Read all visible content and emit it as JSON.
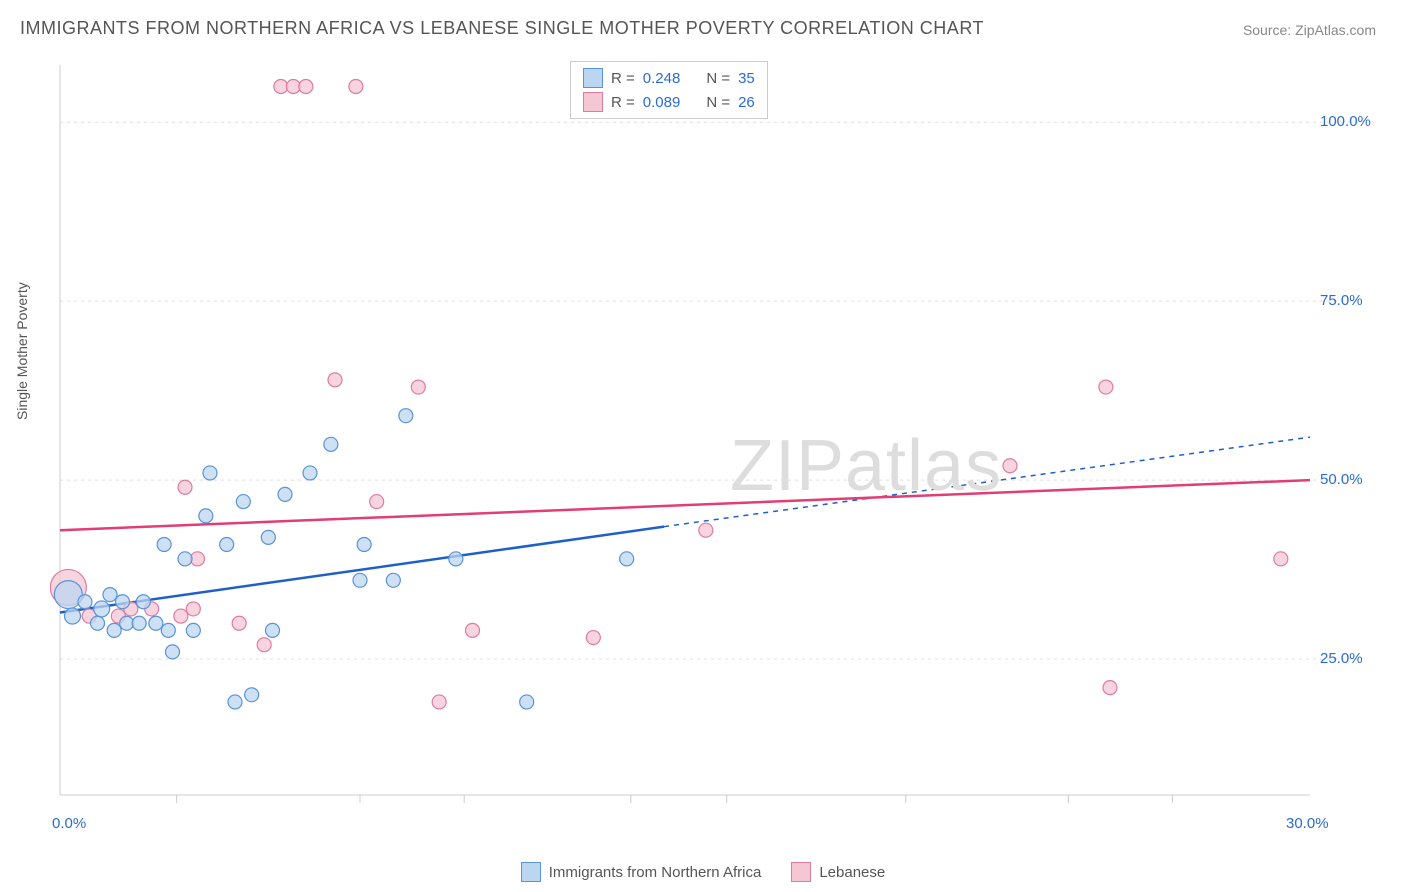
{
  "title": "IMMIGRANTS FROM NORTHERN AFRICA VS LEBANESE SINGLE MOTHER POVERTY CORRELATION CHART",
  "source_prefix": "Source: ",
  "source": "ZipAtlas.com",
  "y_axis_label": "Single Mother Poverty",
  "watermark": "ZIPatlas",
  "chart": {
    "type": "scatter",
    "xlim": [
      0,
      30
    ],
    "ylim": [
      6,
      108
    ],
    "x_ticks": [
      0,
      30
    ],
    "x_tick_labels": [
      "0.0%",
      "30.0%"
    ],
    "x_minor_ticks": [
      2.8,
      7.2,
      9.7,
      13.7,
      16.0,
      20.3,
      24.2,
      26.7
    ],
    "y_ticks": [
      25,
      50,
      75,
      100
    ],
    "y_tick_labels": [
      "25.0%",
      "50.0%",
      "75.0%",
      "100.0%"
    ],
    "grid_color": "#dddddd",
    "axis_color": "#cccccc",
    "background_color": "#ffffff",
    "tick_label_color": "#2b6cd4",
    "axis_label_color": "#555555",
    "series": [
      {
        "name": "Immigrants from Northern Africa",
        "marker_fill": "#bcd5f0",
        "marker_stroke": "#5a94d6",
        "marker_opacity": 0.75,
        "line_color": "#1f5fc9",
        "R": "0.248",
        "N": "35",
        "regression": {
          "x1": 0,
          "y1": 31.5,
          "x2": 14.5,
          "y2": 43.5,
          "x2_ext": 30,
          "y2_ext": 56
        },
        "points": [
          {
            "x": 0.2,
            "y": 34,
            "r": 14
          },
          {
            "x": 0.3,
            "y": 31,
            "r": 8
          },
          {
            "x": 0.6,
            "y": 33,
            "r": 7
          },
          {
            "x": 0.9,
            "y": 30,
            "r": 7
          },
          {
            "x": 1.0,
            "y": 32,
            "r": 8
          },
          {
            "x": 1.2,
            "y": 34,
            "r": 7
          },
          {
            "x": 1.3,
            "y": 29,
            "r": 7
          },
          {
            "x": 1.5,
            "y": 33,
            "r": 7
          },
          {
            "x": 1.6,
            "y": 30,
            "r": 7
          },
          {
            "x": 1.9,
            "y": 30,
            "r": 7
          },
          {
            "x": 2.0,
            "y": 33,
            "r": 7
          },
          {
            "x": 2.3,
            "y": 30,
            "r": 7
          },
          {
            "x": 2.5,
            "y": 41,
            "r": 7
          },
          {
            "x": 2.6,
            "y": 29,
            "r": 7
          },
          {
            "x": 2.7,
            "y": 26,
            "r": 7
          },
          {
            "x": 3.0,
            "y": 39,
            "r": 7
          },
          {
            "x": 3.2,
            "y": 29,
            "r": 7
          },
          {
            "x": 3.5,
            "y": 45,
            "r": 7
          },
          {
            "x": 3.6,
            "y": 51,
            "r": 7
          },
          {
            "x": 4.0,
            "y": 41,
            "r": 7
          },
          {
            "x": 4.2,
            "y": 19,
            "r": 7
          },
          {
            "x": 4.4,
            "y": 47,
            "r": 7
          },
          {
            "x": 4.6,
            "y": 20,
            "r": 7
          },
          {
            "x": 5.0,
            "y": 42,
            "r": 7
          },
          {
            "x": 5.1,
            "y": 29,
            "r": 7
          },
          {
            "x": 5.4,
            "y": 48,
            "r": 7
          },
          {
            "x": 6.0,
            "y": 51,
            "r": 7
          },
          {
            "x": 6.5,
            "y": 55,
            "r": 7
          },
          {
            "x": 7.2,
            "y": 36,
            "r": 7
          },
          {
            "x": 7.3,
            "y": 41,
            "r": 7
          },
          {
            "x": 8.0,
            "y": 36,
            "r": 7
          },
          {
            "x": 8.3,
            "y": 59,
            "r": 7
          },
          {
            "x": 9.5,
            "y": 39,
            "r": 7
          },
          {
            "x": 11.2,
            "y": 19,
            "r": 7
          },
          {
            "x": 13.6,
            "y": 39,
            "r": 7
          }
        ]
      },
      {
        "name": "Lebanese",
        "marker_fill": "#f5c6d4",
        "marker_stroke": "#e07ba0",
        "marker_opacity": 0.75,
        "line_color": "#e23d74",
        "R": "0.089",
        "N": "26",
        "regression": {
          "x1": 0,
          "y1": 43,
          "x2": 30,
          "y2": 50,
          "x2_ext": 30,
          "y2_ext": 50
        },
        "points": [
          {
            "x": 0.2,
            "y": 35,
            "r": 18
          },
          {
            "x": 0.7,
            "y": 31,
            "r": 7
          },
          {
            "x": 1.4,
            "y": 31,
            "r": 7
          },
          {
            "x": 1.7,
            "y": 32,
            "r": 7
          },
          {
            "x": 2.2,
            "y": 32,
            "r": 7
          },
          {
            "x": 2.9,
            "y": 31,
            "r": 7
          },
          {
            "x": 3.0,
            "y": 49,
            "r": 7
          },
          {
            "x": 3.2,
            "y": 32,
            "r": 7
          },
          {
            "x": 3.3,
            "y": 39,
            "r": 7
          },
          {
            "x": 4.3,
            "y": 30,
            "r": 7
          },
          {
            "x": 4.9,
            "y": 27,
            "r": 7
          },
          {
            "x": 5.3,
            "y": 105,
            "r": 7
          },
          {
            "x": 5.6,
            "y": 105,
            "r": 7
          },
          {
            "x": 5.9,
            "y": 105,
            "r": 7
          },
          {
            "x": 6.6,
            "y": 64,
            "r": 7
          },
          {
            "x": 7.1,
            "y": 105,
            "r": 7
          },
          {
            "x": 7.6,
            "y": 47,
            "r": 7
          },
          {
            "x": 8.6,
            "y": 63,
            "r": 7
          },
          {
            "x": 9.1,
            "y": 19,
            "r": 7
          },
          {
            "x": 9.9,
            "y": 29,
            "r": 7
          },
          {
            "x": 12.8,
            "y": 28,
            "r": 7
          },
          {
            "x": 15.5,
            "y": 43,
            "r": 7
          },
          {
            "x": 22.8,
            "y": 52,
            "r": 7
          },
          {
            "x": 25.1,
            "y": 63,
            "r": 7
          },
          {
            "x": 25.2,
            "y": 21,
            "r": 7
          },
          {
            "x": 29.3,
            "y": 39,
            "r": 7
          }
        ]
      }
    ]
  },
  "legend_top": {
    "rows": [
      {
        "swatch_fill": "#bcd5f0",
        "swatch_stroke": "#5a94d6",
        "R_label": "R =",
        "R": "0.248",
        "N_label": "N =",
        "N": "35"
      },
      {
        "swatch_fill": "#f5c6d4",
        "swatch_stroke": "#e07ba0",
        "R_label": "R =",
        "R": "0.089",
        "N_label": "N =",
        "N": "26"
      }
    ]
  },
  "legend_bottom": [
    {
      "swatch_fill": "#bcd5f0",
      "swatch_stroke": "#5a94d6",
      "label": "Immigrants from Northern Africa"
    },
    {
      "swatch_fill": "#f5c6d4",
      "swatch_stroke": "#e07ba0",
      "label": "Lebanese"
    }
  ]
}
